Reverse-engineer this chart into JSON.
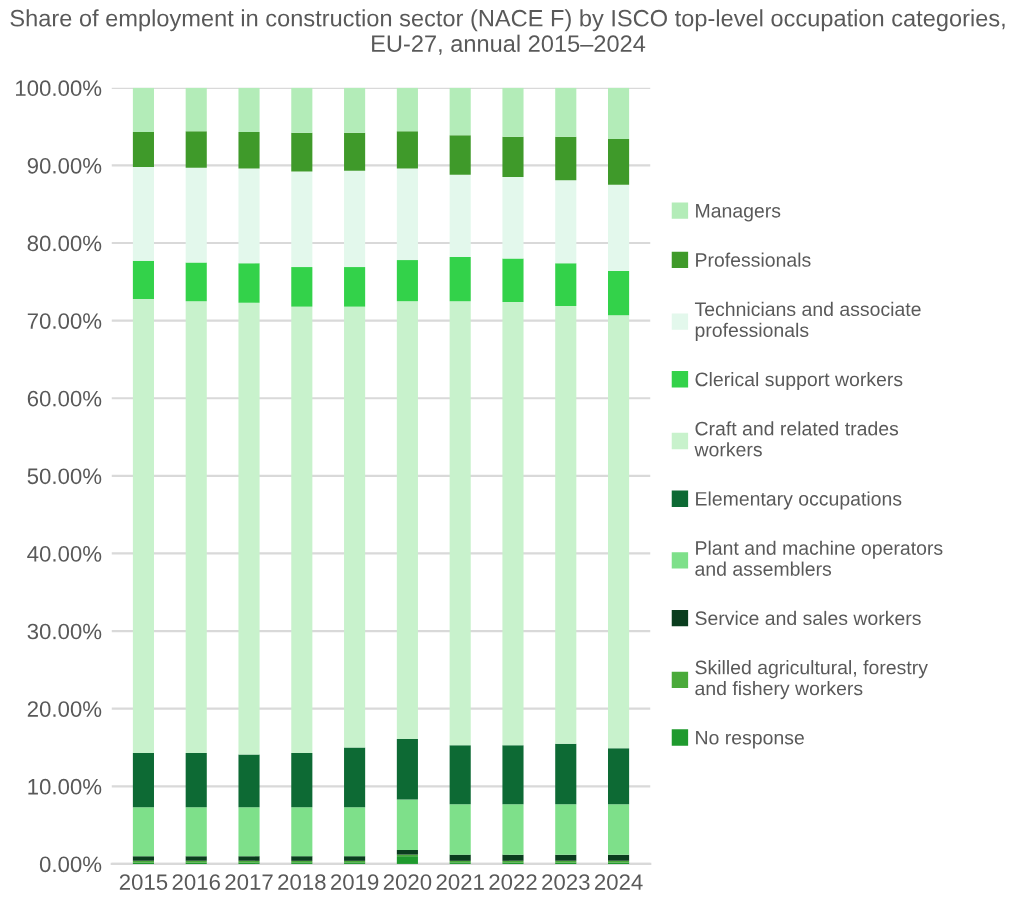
{
  "chart_data": {
    "type": "bar",
    "stacked": true,
    "title": "Share of employment in construction sector (NACE F) by ISCO top-level occupation categories, EU-27, annual 2015–2024",
    "categories": [
      "2015",
      "2016",
      "2017",
      "2018",
      "2019",
      "2020",
      "2021",
      "2022",
      "2023",
      "2024"
    ],
    "series": [
      {
        "name": "No response",
        "color": "#1f9a2e",
        "values": [
          0.2,
          0.2,
          0.2,
          0.2,
          0.2,
          1.0,
          0.2,
          0.2,
          0.2,
          0.2
        ]
      },
      {
        "name": "Skilled agricultural, forestry and fishery workers",
        "color": "#4aaa3a",
        "values": [
          0.2,
          0.2,
          0.2,
          0.2,
          0.2,
          0.2,
          0.2,
          0.2,
          0.2,
          0.2
        ]
      },
      {
        "name": "Service and sales workers",
        "color": "#0a3d1e",
        "values": [
          0.6,
          0.6,
          0.6,
          0.6,
          0.6,
          0.6,
          0.8,
          0.8,
          0.8,
          0.8
        ]
      },
      {
        "name": "Plant and machine operators and assemblers",
        "color": "#7ee08a",
        "values": [
          6.3,
          6.3,
          6.3,
          6.3,
          6.3,
          6.5,
          6.5,
          6.5,
          6.5,
          6.5
        ]
      },
      {
        "name": "Elementary occupations",
        "color": "#0d6a34",
        "values": [
          7.0,
          7.0,
          6.8,
          7.0,
          7.7,
          7.8,
          7.6,
          7.6,
          7.8,
          7.2
        ]
      },
      {
        "name": "Craft and related trades workers",
        "color": "#c8f2cc",
        "values": [
          58.5,
          58.2,
          58.2,
          57.5,
          56.8,
          56.4,
          57.2,
          57.1,
          56.4,
          55.8
        ]
      },
      {
        "name": "Clerical support workers",
        "color": "#33d24a",
        "values": [
          4.9,
          5.0,
          5.1,
          5.1,
          5.1,
          5.3,
          5.7,
          5.6,
          5.5,
          5.7
        ]
      },
      {
        "name": "Technicians and associate professionals",
        "color": "#e3f8ec",
        "values": [
          12.1,
          12.2,
          12.2,
          12.3,
          12.4,
          11.8,
          10.6,
          10.5,
          10.7,
          11.1
        ]
      },
      {
        "name": "Professionals",
        "color": "#3f9a2a",
        "values": [
          4.5,
          4.7,
          4.7,
          5.0,
          4.9,
          4.8,
          5.1,
          5.2,
          5.6,
          5.9
        ]
      },
      {
        "name": "Managers",
        "color": "#b3ecb8",
        "values": [
          5.7,
          5.6,
          5.7,
          5.8,
          5.8,
          5.6,
          6.1,
          6.3,
          6.3,
          6.6
        ]
      }
    ],
    "ylim": [
      0,
      100
    ],
    "yticks": [
      {
        "value": 0,
        "label": "0.00%"
      },
      {
        "value": 10,
        "label": "10.00%"
      },
      {
        "value": 20,
        "label": "20.00%"
      },
      {
        "value": 30,
        "label": "30.00%"
      },
      {
        "value": 40,
        "label": "40.00%"
      },
      {
        "value": 50,
        "label": "50.00%"
      },
      {
        "value": 60,
        "label": "60.00%"
      },
      {
        "value": 70,
        "label": "70.00%"
      },
      {
        "value": 80,
        "label": "80.00%"
      },
      {
        "value": 90,
        "label": "90.00%"
      },
      {
        "value": 100,
        "label": "100.00%"
      }
    ],
    "grid": "y",
    "legend": "right"
  }
}
